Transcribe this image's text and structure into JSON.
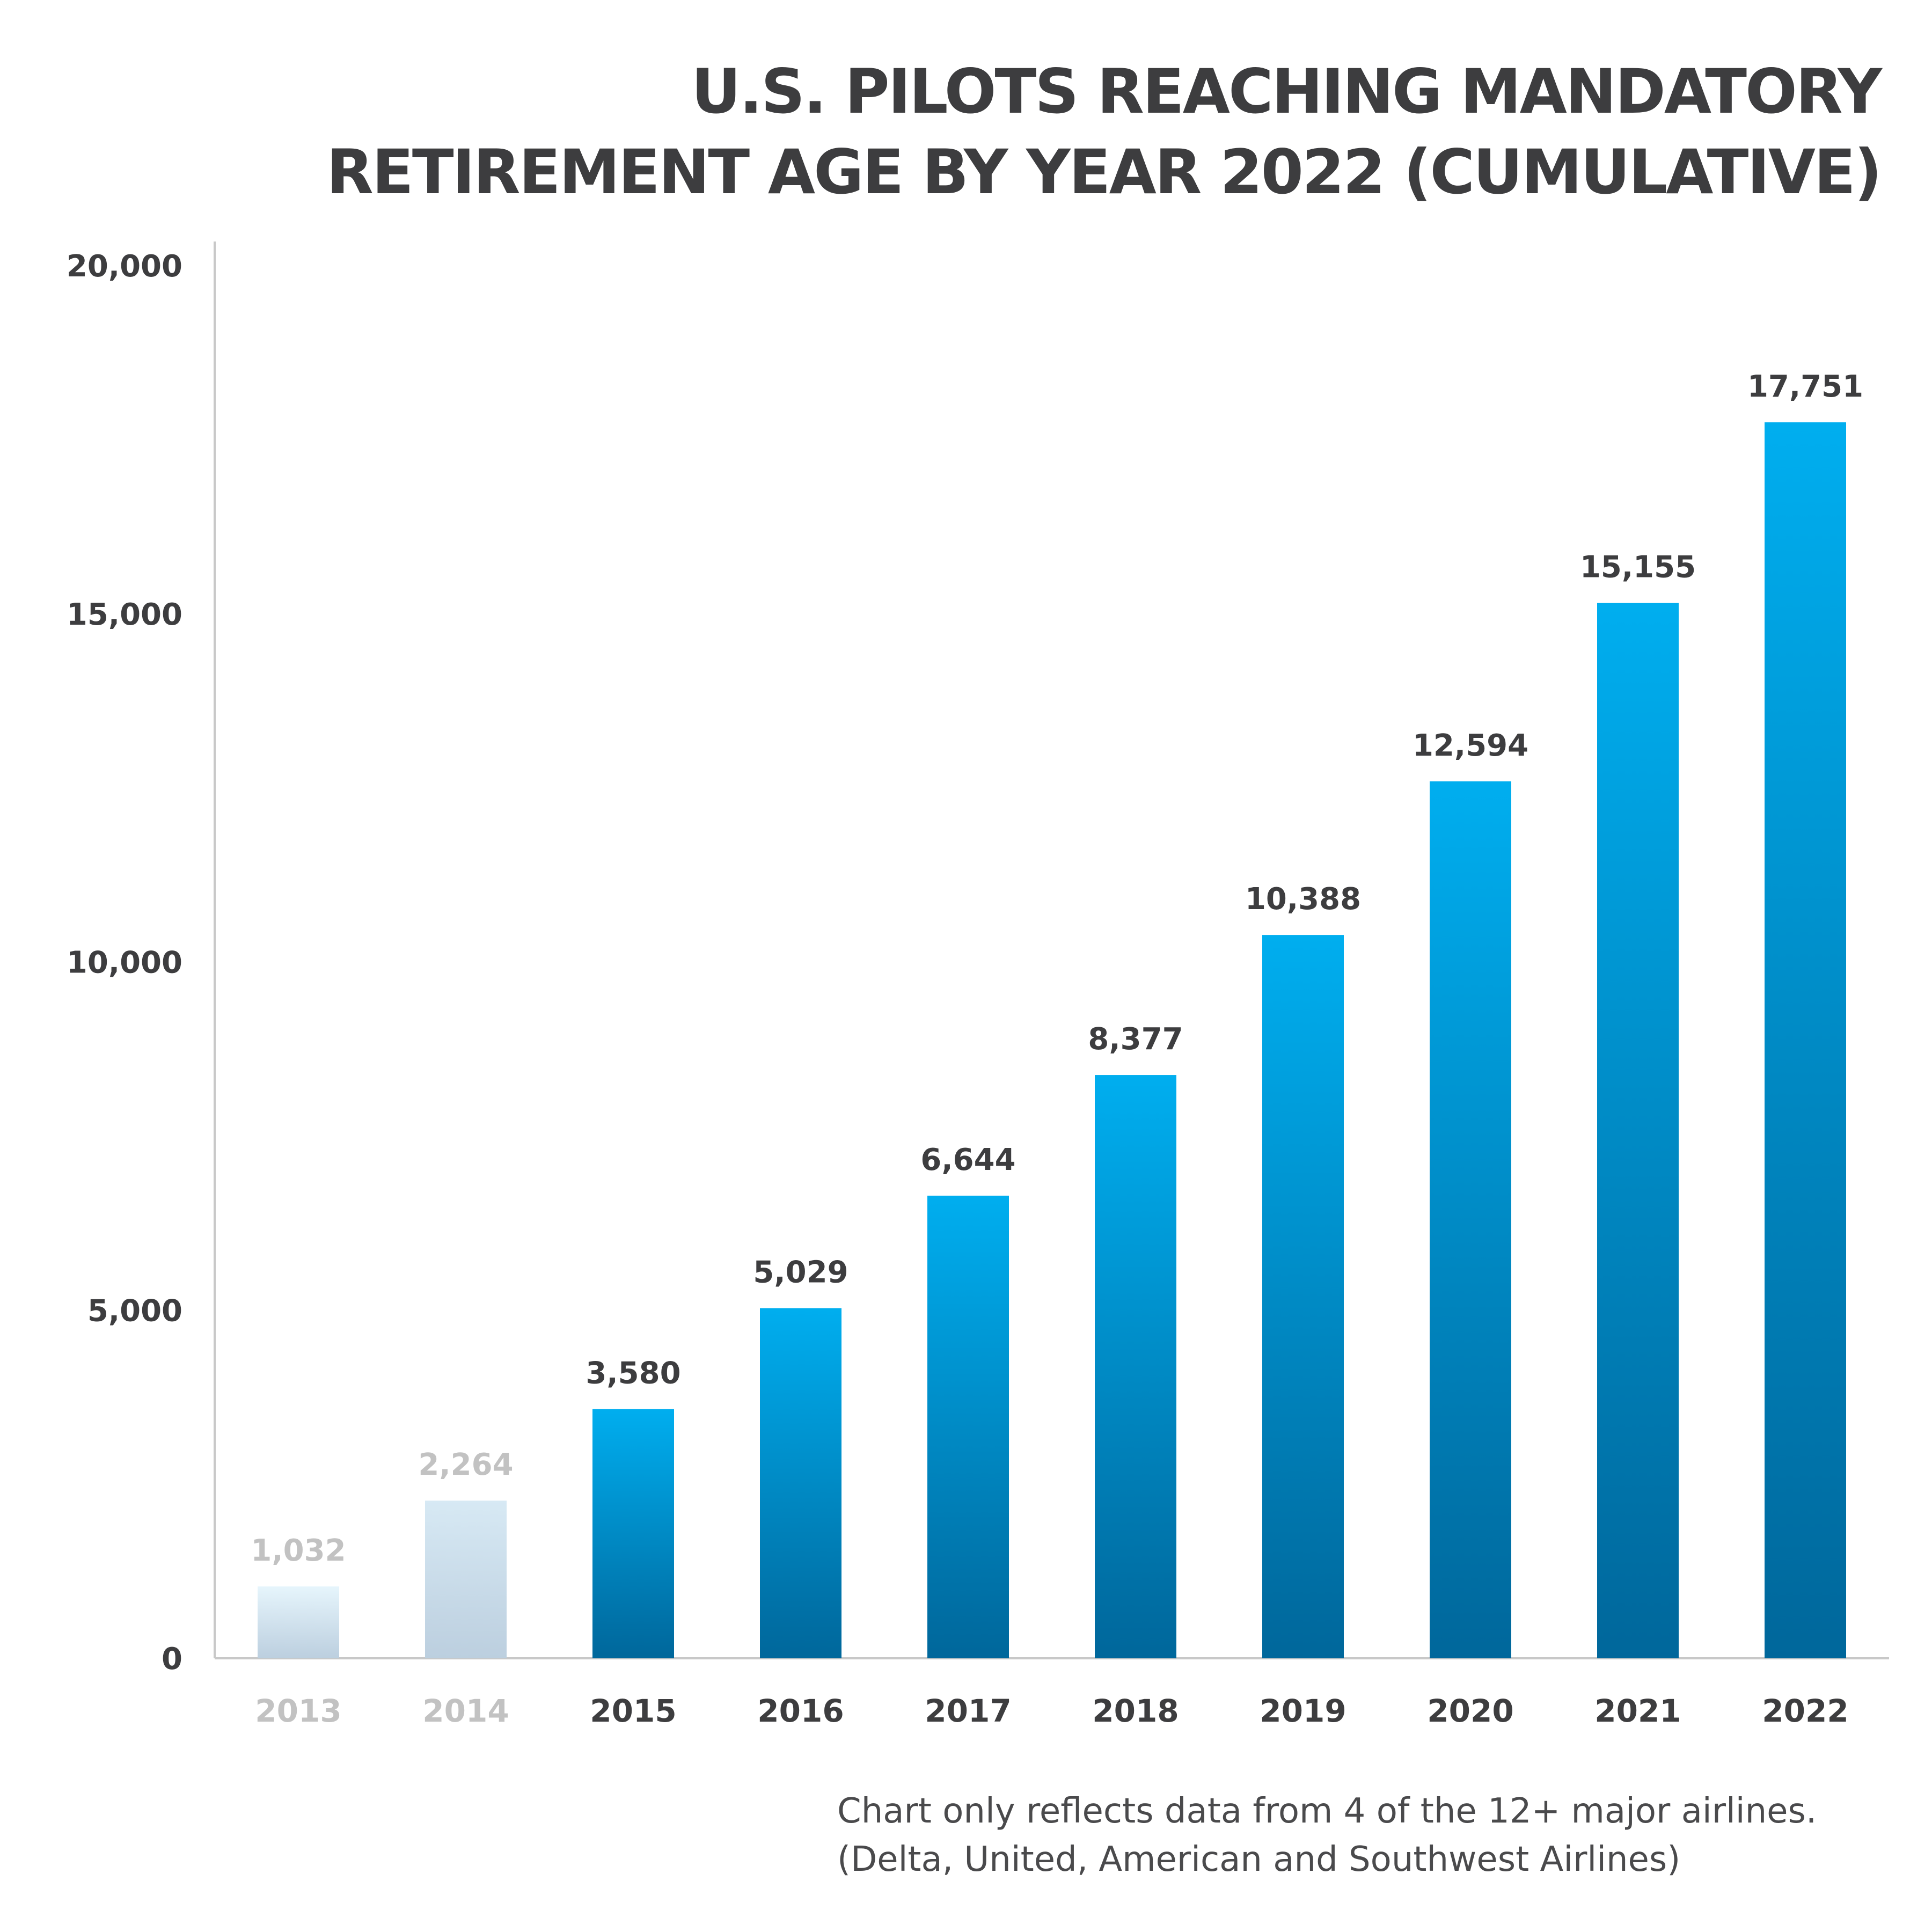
{
  "title": {
    "line1": "U.S. PILOTS REACHING MANDATORY",
    "line2": "RETIREMENT AGE BY YEAR 2022 (CUMULATIVE)"
  },
  "footnote": {
    "line1": "Chart only reflects data from 4 of the 12+ major airlines.",
    "line2": "(Delta, United, American and Southwest Airlines)"
  },
  "colors": {
    "text_dark": "#3d3d3f",
    "text_muted": "#c2c2c2",
    "axis": "#c8c8c8",
    "bar_top": "#00aeef",
    "bar_bottom": "#00679b",
    "faded_top": "#e6f5fc",
    "faded_bottom": "#bccfdf",
    "faded_top_2": "#d7e9f4"
  },
  "chart_data": {
    "type": "bar",
    "title": "U.S. PILOTS REACHING MANDATORY RETIREMENT AGE BY YEAR 2022 (CUMULATIVE)",
    "categories": [
      "2013",
      "2014",
      "2015",
      "2016",
      "2017",
      "2018",
      "2019",
      "2020",
      "2021",
      "2022"
    ],
    "values": [
      1032,
      2264,
      3580,
      5029,
      6644,
      8377,
      10388,
      12594,
      15155,
      17751
    ],
    "value_labels": [
      "1,032",
      "2,264",
      "3,580",
      "5,029",
      "6,644",
      "8,377",
      "10,388",
      "12,594",
      "15,155",
      "17,751"
    ],
    "faded": [
      true,
      true,
      false,
      false,
      false,
      false,
      false,
      false,
      false,
      false
    ],
    "y_ticks": [
      0,
      5000,
      10000,
      15000,
      20000
    ],
    "y_tick_labels": [
      "0",
      "5,000",
      "10,000",
      "15,000",
      "20,000"
    ],
    "ylim": [
      0,
      20000
    ],
    "xlabel": "",
    "ylabel": "",
    "grid": false,
    "legend": "none"
  }
}
